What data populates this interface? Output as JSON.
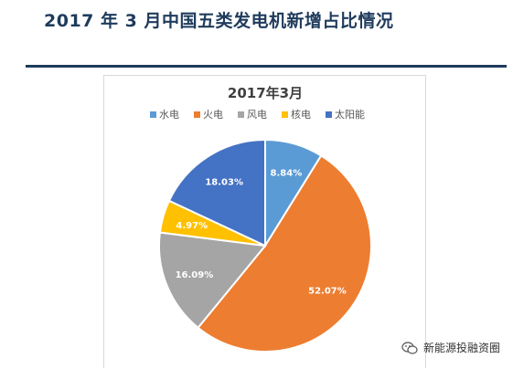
{
  "page": {
    "title": "2017 年 3 月中国五类发电机新增占比情况"
  },
  "watermark": {
    "text": "新能源投融资圈",
    "icon": "wechat-icon"
  },
  "chart_data": {
    "type": "pie",
    "title": "2017年3月",
    "legend_position": "top",
    "slices": [
      {
        "label": "水电",
        "value": 8.84,
        "display": "8.84%",
        "color": "#5b9bd5"
      },
      {
        "label": "火电",
        "value": 52.07,
        "display": "52.07%",
        "color": "#ed7d31"
      },
      {
        "label": "风电",
        "value": 16.09,
        "display": "16.09%",
        "color": "#a5a5a5"
      },
      {
        "label": "核电",
        "value": 4.97,
        "display": "4.97%",
        "color": "#ffc000"
      },
      {
        "label": "太阳能",
        "value": 18.03,
        "display": "18.03%",
        "color": "#4472c4"
      }
    ]
  }
}
